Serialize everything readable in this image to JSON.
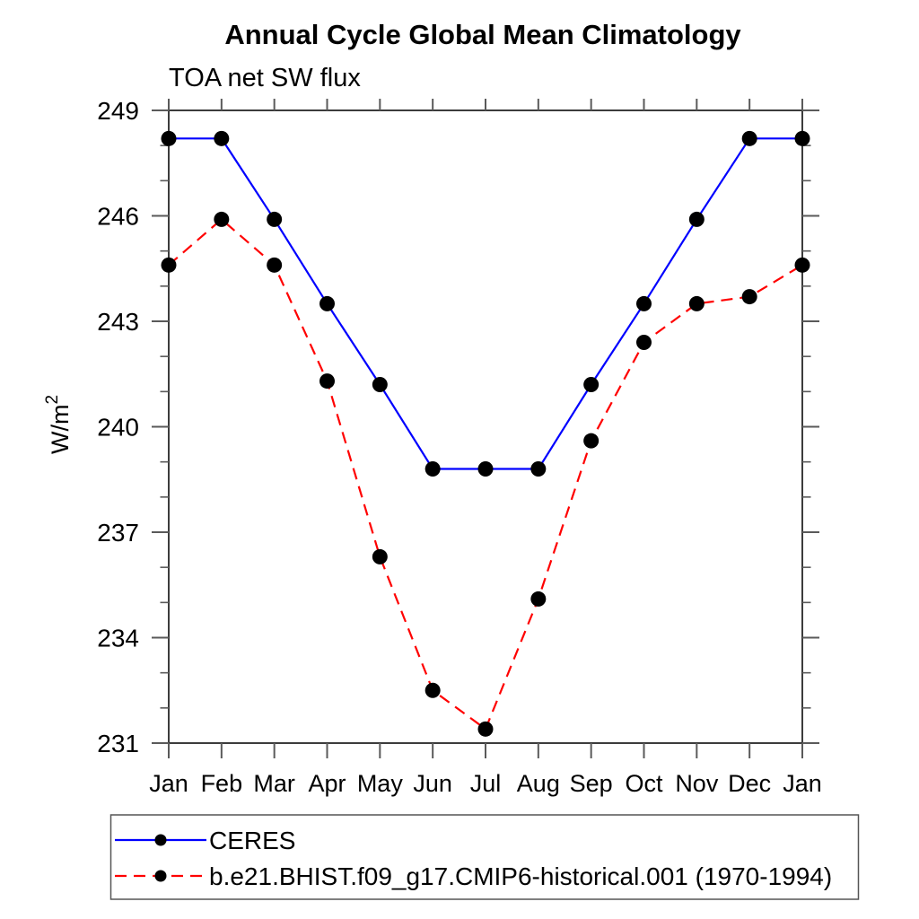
{
  "chart_data": {
    "type": "line",
    "title": "Annual Cycle Global Mean Climatology",
    "subtitle": "TOA net SW flux",
    "ylabel": "W/m²",
    "ylabel_base": "W/m",
    "ylabel_sup": "2",
    "x_categories": [
      "Jan",
      "Feb",
      "Mar",
      "Apr",
      "May",
      "Jun",
      "Jul",
      "Aug",
      "Sep",
      "Oct",
      "Nov",
      "Dec",
      "Jan"
    ],
    "ylim": [
      231,
      249
    ],
    "yticks_major": [
      231,
      234,
      237,
      240,
      243,
      246,
      249
    ],
    "ytick_minor_step": 1,
    "grid": false,
    "legend_position": "bottom-left",
    "series": [
      {
        "name": "CERES",
        "color": "#0000ff",
        "line_style": "solid",
        "marker": "filled-circle",
        "marker_color": "#000000",
        "values": [
          248.2,
          248.2,
          245.9,
          243.5,
          241.2,
          238.8,
          238.8,
          238.8,
          241.2,
          243.5,
          245.9,
          248.2,
          248.2
        ]
      },
      {
        "name": "b.e21.BHIST.f09_g17.CMIP6-historical.001 (1970-1994)",
        "color": "#ff0000",
        "line_style": "dashed",
        "marker": "filled-circle",
        "marker_color": "#000000",
        "values": [
          244.6,
          245.9,
          244.6,
          241.3,
          236.3,
          232.5,
          231.4,
          235.1,
          239.6,
          242.4,
          243.5,
          243.7,
          244.6
        ]
      }
    ]
  }
}
